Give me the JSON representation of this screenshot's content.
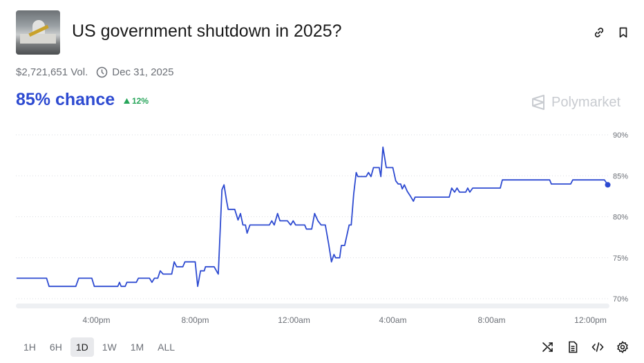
{
  "header": {
    "title": "US government shutdown in 2025?",
    "volume": "$2,721,651 Vol.",
    "end_date": "Dec 31, 2025",
    "chance": "85% chance",
    "change": "12%",
    "brand": "Polymarket",
    "icons": [
      "link-icon",
      "bookmark-icon"
    ]
  },
  "colors": {
    "line": "#2d4ad1",
    "chance": "#2d4ad1",
    "up": "#27a55a"
  },
  "chart_data": {
    "type": "line",
    "ylim": [
      70,
      90
    ],
    "y_ticks": [
      "90%",
      "85%",
      "80%",
      "75%",
      "70%"
    ],
    "y_tick_values": [
      90,
      85,
      80,
      75,
      70
    ],
    "x_ticks": [
      "4:00pm",
      "8:00pm",
      "12:00am",
      "4:00am",
      "8:00am",
      "12:00pm"
    ],
    "grid": true,
    "series": [
      {
        "points": [
          [
            "12:46pm",
            72.5
          ],
          [
            "1:59pm",
            72.5
          ],
          [
            "2:05pm",
            71.5
          ],
          [
            "3:10pm",
            71.5
          ],
          [
            "3:17pm",
            72.5
          ],
          [
            "3:49pm",
            72.5
          ],
          [
            "3:55pm",
            71.5
          ],
          [
            "4:52pm",
            71.5
          ],
          [
            "4:56pm",
            72.0
          ],
          [
            "5:00pm",
            71.5
          ],
          [
            "5:10pm",
            71.5
          ],
          [
            "5:14pm",
            72.0
          ],
          [
            "5:37pm",
            72.0
          ],
          [
            "5:42pm",
            72.5
          ],
          [
            "6:09pm",
            72.5
          ],
          [
            "6:15pm",
            72.0
          ],
          [
            "6:21pm",
            72.5
          ],
          [
            "6:29pm",
            72.5
          ],
          [
            "6:35pm",
            73.4
          ],
          [
            "6:42pm",
            73.0
          ],
          [
            "7:03pm",
            73.0
          ],
          [
            "7:09pm",
            74.5
          ],
          [
            "7:15pm",
            73.9
          ],
          [
            "7:30pm",
            73.9
          ],
          [
            "7:35pm",
            74.5
          ],
          [
            "8:00pm",
            74.5
          ],
          [
            "8:06pm",
            71.5
          ],
          [
            "8:13pm",
            73.4
          ],
          [
            "8:22pm",
            73.4
          ],
          [
            "8:25pm",
            73.9
          ],
          [
            "8:46pm",
            73.9
          ],
          [
            "8:56pm",
            73.0
          ],
          [
            "9:05pm",
            83.3
          ],
          [
            "9:10pm",
            83.9
          ],
          [
            "9:16pm",
            82.0
          ],
          [
            "9:20pm",
            80.9
          ],
          [
            "9:36pm",
            80.9
          ],
          [
            "9:44pm",
            79.6
          ],
          [
            "9:50pm",
            80.4
          ],
          [
            "9:56pm",
            79.0
          ],
          [
            "10:02pm",
            79.0
          ],
          [
            "10:06pm",
            78.0
          ],
          [
            "10:13pm",
            79.0
          ],
          [
            "11:00pm",
            79.0
          ],
          [
            "11:06pm",
            79.5
          ],
          [
            "11:12pm",
            79.0
          ],
          [
            "11:20pm",
            80.4
          ],
          [
            "11:26pm",
            79.5
          ],
          [
            "11:44pm",
            79.5
          ],
          [
            "11:52pm",
            79.0
          ],
          [
            "11:58pm",
            79.5
          ],
          [
            "12:04am",
            79.0
          ],
          [
            "12:26am",
            79.0
          ],
          [
            "12:30am",
            78.5
          ],
          [
            "12:43am",
            78.5
          ],
          [
            "12:50am",
            80.4
          ],
          [
            "12:58am",
            79.5
          ],
          [
            "1:06am",
            79.0
          ],
          [
            "1:16am",
            79.0
          ],
          [
            "1:24am",
            76.7
          ],
          [
            "1:31am",
            74.5
          ],
          [
            "1:37am",
            75.4
          ],
          [
            "1:41am",
            75.0
          ],
          [
            "1:51am",
            75.0
          ],
          [
            "1:55am",
            76.5
          ],
          [
            "2:03am",
            76.5
          ],
          [
            "2:14am",
            79.0
          ],
          [
            "2:19am",
            79.0
          ],
          [
            "2:25am",
            82.8
          ],
          [
            "2:31am",
            85.4
          ],
          [
            "2:35am",
            84.9
          ],
          [
            "2:55am",
            84.9
          ],
          [
            "3:01am",
            85.4
          ],
          [
            "3:07am",
            84.9
          ],
          [
            "3:13am",
            86.0
          ],
          [
            "3:27am",
            86.0
          ],
          [
            "3:31am",
            84.9
          ],
          [
            "3:36am",
            88.5
          ],
          [
            "3:44am",
            86.0
          ],
          [
            "4:00am",
            86.0
          ],
          [
            "4:07am",
            84.4
          ],
          [
            "4:13am",
            84.0
          ],
          [
            "4:19am",
            84.0
          ],
          [
            "4:23am",
            83.4
          ],
          [
            "4:28am",
            83.9
          ],
          [
            "4:35am",
            83.1
          ],
          [
            "4:43am",
            82.5
          ],
          [
            "4:50am",
            81.9
          ],
          [
            "4:54am",
            82.4
          ],
          [
            "6:17am",
            82.4
          ],
          [
            "6:23am",
            83.5
          ],
          [
            "6:30am",
            83.0
          ],
          [
            "6:36am",
            83.5
          ],
          [
            "6:42am",
            83.0
          ],
          [
            "6:57am",
            83.0
          ],
          [
            "7:02am",
            83.5
          ],
          [
            "7:07am",
            83.0
          ],
          [
            "7:14am",
            83.5
          ],
          [
            "8:21am",
            83.5
          ],
          [
            "8:26am",
            84.5
          ],
          [
            "10:21am",
            84.5
          ],
          [
            "10:25am",
            84.0
          ],
          [
            "11:12am",
            84.0
          ],
          [
            "11:17am",
            84.5
          ],
          [
            "12:34pm",
            84.5
          ],
          [
            "12:42pm",
            83.9
          ]
        ]
      }
    ]
  },
  "footer": {
    "ranges": [
      "1H",
      "6H",
      "1D",
      "1W",
      "1M",
      "ALL"
    ],
    "active_range": "1D",
    "tools": [
      "shuffle-icon",
      "document-icon",
      "code-icon",
      "gear-icon"
    ]
  }
}
